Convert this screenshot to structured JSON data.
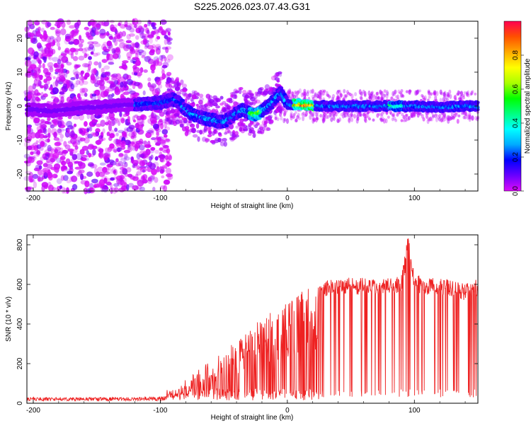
{
  "title": "S225.2026.023.07.43.G31",
  "colorbar": {
    "label": "Normalized spectral amplitude",
    "range": [
      0,
      1
    ],
    "ticks": [
      "0.0",
      "0.2",
      "0.4",
      "0.6",
      "0.8"
    ],
    "tick_values": [
      0.0,
      0.2,
      0.4,
      0.6,
      0.8
    ],
    "colors": [
      "#dc0cf8",
      "#6a00ff",
      "#0000ff",
      "#00aaff",
      "#00ffff",
      "#00ff80",
      "#00ff00",
      "#aaff00",
      "#ffff00",
      "#ffaa00",
      "#ff5000",
      "#ff0050"
    ]
  },
  "chart_data": [
    {
      "type": "heatmap",
      "name": "spectrogram",
      "xlabel": "Height of straight line (km)",
      "ylabel": "Frequency (Hz)",
      "xlim": [
        -205,
        150
      ],
      "ylim": [
        -25,
        25
      ],
      "xticks": [
        -200,
        -100,
        0,
        100
      ],
      "xtick_labels": [
        "-200",
        "-100",
        "0",
        "100"
      ],
      "yticks": [
        -20,
        -10,
        0,
        10,
        20
      ],
      "ytick_labels": [
        "-20",
        "-10",
        "0",
        "10",
        "20"
      ],
      "center_line": {
        "x": [
          -200,
          -185,
          -175,
          -160,
          -140,
          -120,
          -100,
          -90,
          -85,
          -80,
          -75,
          -70,
          -65,
          -60,
          -55,
          -50,
          -45,
          -40,
          -35,
          -30,
          -25,
          -20,
          -15,
          -10,
          -5,
          0,
          10,
          20,
          40,
          60,
          80,
          100,
          120,
          140,
          150
        ],
        "y": [
          -1,
          -1.5,
          -1,
          -0.5,
          0,
          0.5,
          1,
          2,
          1,
          -1,
          -2.5,
          -3,
          -3.5,
          -4,
          -4.5,
          -4.5,
          -3.5,
          -2,
          -1,
          -2,
          -2.5,
          -1.5,
          0,
          2,
          4,
          0.5,
          0.5,
          0.2,
          0,
          0,
          0,
          0,
          -0.3,
          0,
          0
        ]
      },
      "color_scale": "Normalized spectral amplitude"
    },
    {
      "type": "line",
      "name": "snr",
      "xlabel": "Height of straight line (km)",
      "ylabel": "SNR (10 * v/v)",
      "xlim": [
        -205,
        150
      ],
      "ylim": [
        0,
        850
      ],
      "xticks": [
        -200,
        -100,
        0,
        100
      ],
      "xtick_labels": [
        "-200",
        "-100",
        "0",
        "100"
      ],
      "yticks": [
        0,
        200,
        400,
        600,
        800
      ],
      "ytick_labels": [
        "0",
        "200",
        "400",
        "600",
        "800"
      ],
      "color": "#ee2222",
      "envelope": {
        "x": [
          -205,
          -120,
          -100,
          -90,
          -80,
          -70,
          -60,
          -50,
          -40,
          -30,
          -20,
          -10,
          0,
          10,
          20,
          30,
          40,
          50,
          60,
          70,
          80,
          90,
          95,
          100,
          110,
          120,
          130,
          140,
          150
        ],
        "y": [
          30,
          30,
          35,
          60,
          120,
          170,
          220,
          280,
          330,
          380,
          430,
          470,
          510,
          560,
          590,
          610,
          620,
          625,
          620,
          615,
          620,
          640,
          840,
          640,
          620,
          620,
          610,
          590,
          620
        ]
      }
    }
  ]
}
